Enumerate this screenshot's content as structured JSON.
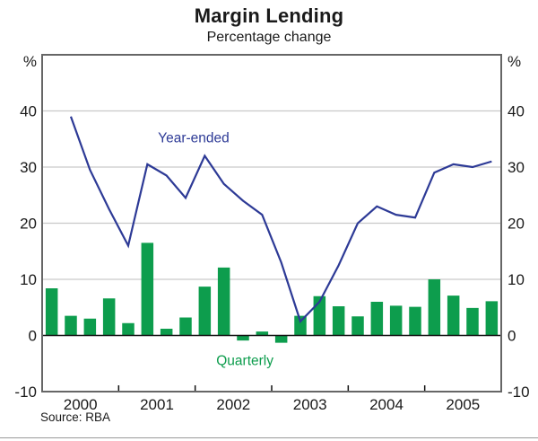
{
  "header": {
    "title": "Margin Lending",
    "subtitle": "Percentage change"
  },
  "source": "Source: RBA",
  "chart_data": {
    "type": "combo",
    "title": "Margin Lending",
    "subtitle": "Percentage change",
    "unit_left": "%",
    "unit_right": "%",
    "ylim": [
      -10,
      50
    ],
    "yticks": [
      -10,
      0,
      10,
      20,
      30,
      40
    ],
    "gridline_values": [
      10,
      20,
      30,
      40
    ],
    "zero_line": 0,
    "xlim": [
      2000,
      2006
    ],
    "year_labels": [
      "2000",
      "2001",
      "2002",
      "2003",
      "2004",
      "2005"
    ],
    "year_boundary_ticks": [
      2001,
      2002,
      2003,
      2004,
      2005
    ],
    "grid": "horizontal",
    "legend_position": "inline-annotations",
    "colors": {
      "line": "#2d3a96",
      "bar": "#0d9d4d",
      "gridline": "#c9c9c9",
      "border": "#666666",
      "zero_line": "#111111",
      "text": "#1a1a1a"
    },
    "series": [
      {
        "name": "Year-ended",
        "type": "line",
        "color": "#2d3a96",
        "label": {
          "text": "Year-ended",
          "x": 2001.98,
          "y": 35.3
        },
        "x": [
          2000.375,
          2000.625,
          2000.875,
          2001.125,
          2001.375,
          2001.625,
          2001.875,
          2002.125,
          2002.375,
          2002.625,
          2002.875,
          2003.125,
          2003.375,
          2003.625,
          2003.875,
          2004.125,
          2004.375,
          2004.625,
          2004.875,
          2005.125,
          2005.375,
          2005.625,
          2005.875
        ],
        "values": [
          39,
          29.5,
          22.5,
          16,
          30.5,
          28.5,
          24.5,
          32,
          27,
          24,
          21.5,
          13,
          2.5,
          6,
          12.5,
          20,
          23,
          21.5,
          21,
          29,
          30.5,
          30,
          31
        ]
      },
      {
        "name": "Quarterly",
        "type": "bar",
        "color": "#0d9d4d",
        "label": {
          "text": "Quarterly",
          "x": 2002.65,
          "y": -4.4
        },
        "x": [
          2000.125,
          2000.375,
          2000.625,
          2000.875,
          2001.125,
          2001.375,
          2001.625,
          2001.875,
          2002.125,
          2002.375,
          2002.625,
          2002.875,
          2003.125,
          2003.375,
          2003.625,
          2003.875,
          2004.125,
          2004.375,
          2004.625,
          2004.875,
          2005.125,
          2005.375,
          2005.625,
          2005.875
        ],
        "values": [
          8.4,
          3.5,
          3.0,
          6.6,
          2.2,
          16.5,
          1.2,
          3.2,
          8.7,
          12.1,
          -0.9,
          0.7,
          -1.3,
          3.5,
          7.0,
          5.2,
          3.4,
          6.0,
          5.3,
          5.1,
          10.0,
          7.1,
          4.9,
          6.1
        ]
      }
    ],
    "source": "Source: RBA"
  }
}
